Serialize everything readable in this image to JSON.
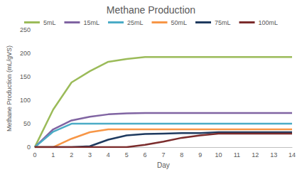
{
  "chart_data": {
    "type": "line",
    "title": "Methane Production",
    "x_label": "Day",
    "y_label": "Methane Production (mL/gVS)",
    "x": [
      0,
      1,
      2,
      3,
      4,
      5,
      6,
      7,
      8,
      9,
      10,
      11,
      12,
      13,
      14
    ],
    "series": [
      {
        "name": "5mL",
        "color": "#9BBB59",
        "values": [
          0,
          80,
          138,
          162,
          182,
          188,
          192,
          192,
          192,
          192,
          192,
          192,
          192,
          192,
          192
        ]
      },
      {
        "name": "15mL",
        "color": "#8064A2",
        "values": [
          0,
          38,
          57,
          65,
          70,
          72,
          73,
          73,
          73,
          73,
          73,
          73,
          73,
          73,
          73
        ]
      },
      {
        "name": "25mL",
        "color": "#4BACC6",
        "values": [
          0,
          33,
          50,
          50,
          50,
          50,
          50,
          50,
          50,
          50,
          50,
          50,
          50,
          50,
          50
        ]
      },
      {
        "name": "50mL",
        "color": "#F79646",
        "values": [
          0,
          0,
          18,
          32,
          38,
          38,
          38,
          38,
          38,
          38,
          38,
          38,
          38,
          38,
          38
        ]
      },
      {
        "name": "75mL",
        "color": "#1F3A5F",
        "values": [
          0,
          0,
          0,
          2,
          16,
          25,
          28,
          29,
          30,
          30,
          32,
          32,
          32,
          32,
          32
        ]
      },
      {
        "name": "100mL",
        "color": "#7B2C2C",
        "values": [
          0,
          0,
          0,
          0,
          0,
          0,
          5,
          12,
          20,
          25,
          29,
          29,
          29,
          29,
          29
        ]
      }
    ],
    "xlim": [
      0,
      14
    ],
    "xticks": [
      0,
      1,
      2,
      3,
      4,
      5,
      6,
      7,
      8,
      9,
      10,
      11,
      12,
      13,
      14
    ],
    "ylim": [
      0,
      250
    ],
    "yticks": [
      0,
      50,
      100,
      150,
      200,
      250
    ],
    "grid": false,
    "legend": "top"
  }
}
